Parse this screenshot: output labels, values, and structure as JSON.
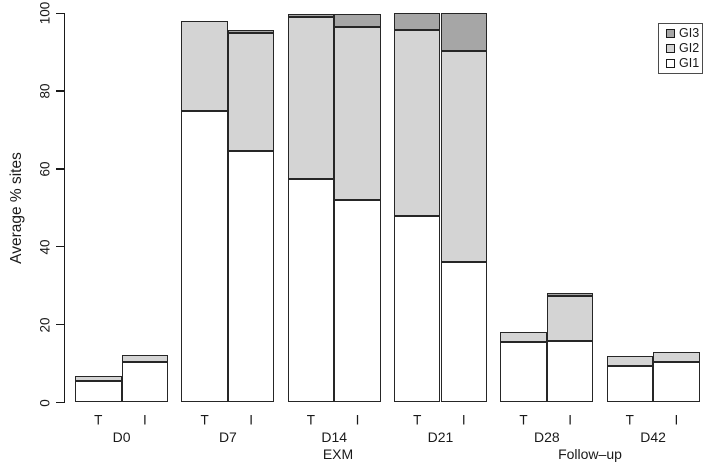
{
  "chart_data": {
    "type": "bar",
    "stacked": true,
    "title": "",
    "ylabel": "Average % sites",
    "xlabel": "",
    "ylim": [
      0,
      100
    ],
    "yticks": [
      0,
      20,
      40,
      60,
      80,
      100
    ],
    "grid": false,
    "categories": [
      "D0",
      "D7",
      "D14",
      "D21",
      "D28",
      "D42"
    ],
    "bars_per_category": [
      "T",
      "I"
    ],
    "period_labels": [
      {
        "text": "EXM",
        "under": "D14"
      },
      {
        "text": "Follow–up",
        "under": "between D28 and D42"
      }
    ],
    "series": [
      {
        "name": "GI1",
        "color": "#ffffff",
        "values": {
          "T": [
            5.4,
            75.0,
            57.5,
            48.0,
            15.5,
            9.5
          ],
          "I": [
            10.4,
            64.5,
            52.0,
            36.0,
            15.7,
            10.4
          ]
        }
      },
      {
        "name": "GI2",
        "color": "#d4d4d4",
        "values": {
          "T": [
            1.4,
            23.0,
            41.5,
            47.8,
            2.5,
            2.5
          ],
          "I": [
            1.9,
            30.5,
            44.5,
            54.4,
            11.6,
            2.5
          ]
        }
      },
      {
        "name": "GI3",
        "color": "#a6a6a6",
        "values": {
          "T": [
            0,
            0,
            0.8,
            4.2,
            0,
            0
          ],
          "I": [
            0,
            0.7,
            3.3,
            9.6,
            0.7,
            0
          ]
        }
      }
    ],
    "legend": {
      "position": "top-right",
      "entries": [
        "GI3",
        "GI2",
        "GI1"
      ]
    }
  },
  "colors": {
    "background": "#ffffff",
    "bar_border": "#262626",
    "axis": "#1a1a1a",
    "legend_border": "#4b4b4b",
    "gi1_fill": "#ffffff",
    "gi2_fill": "#d4d4d4",
    "gi3_fill": "#a6a6a6"
  }
}
